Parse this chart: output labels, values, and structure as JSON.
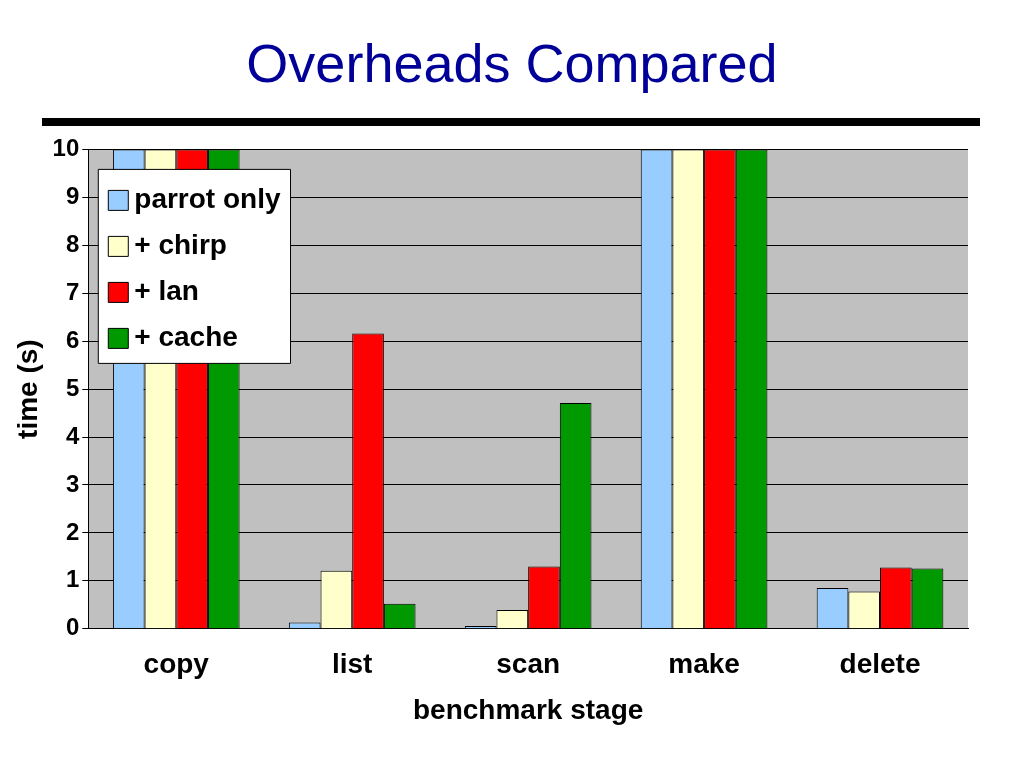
{
  "chart_data": {
    "type": "bar",
    "title": "Overheads Compared",
    "xlabel": "benchmark stage",
    "ylabel": "time (s)",
    "categories": [
      "copy",
      "list",
      "scan",
      "make",
      "delete"
    ],
    "series": [
      {
        "name": "parrot only",
        "color": "#99ccff",
        "values": [
          10,
          0.13,
          0.06,
          10,
          0.85
        ]
      },
      {
        "name": "+ chirp",
        "color": "#ffffcc",
        "values": [
          10,
          1.21,
          0.39,
          10,
          0.78
        ]
      },
      {
        "name": "+ lan",
        "color": "#ff0000",
        "values": [
          10,
          6.16,
          1.3,
          10,
          1.28
        ]
      },
      {
        "name": "+ cache",
        "color": "#009900",
        "values": [
          10,
          0.52,
          4.71,
          10,
          1.26
        ]
      }
    ],
    "ylim": [
      0,
      10
    ],
    "yticks": [
      0,
      1,
      2,
      3,
      4,
      5,
      6,
      7,
      8,
      9,
      10
    ],
    "grid": "y",
    "legend": "top left"
  }
}
